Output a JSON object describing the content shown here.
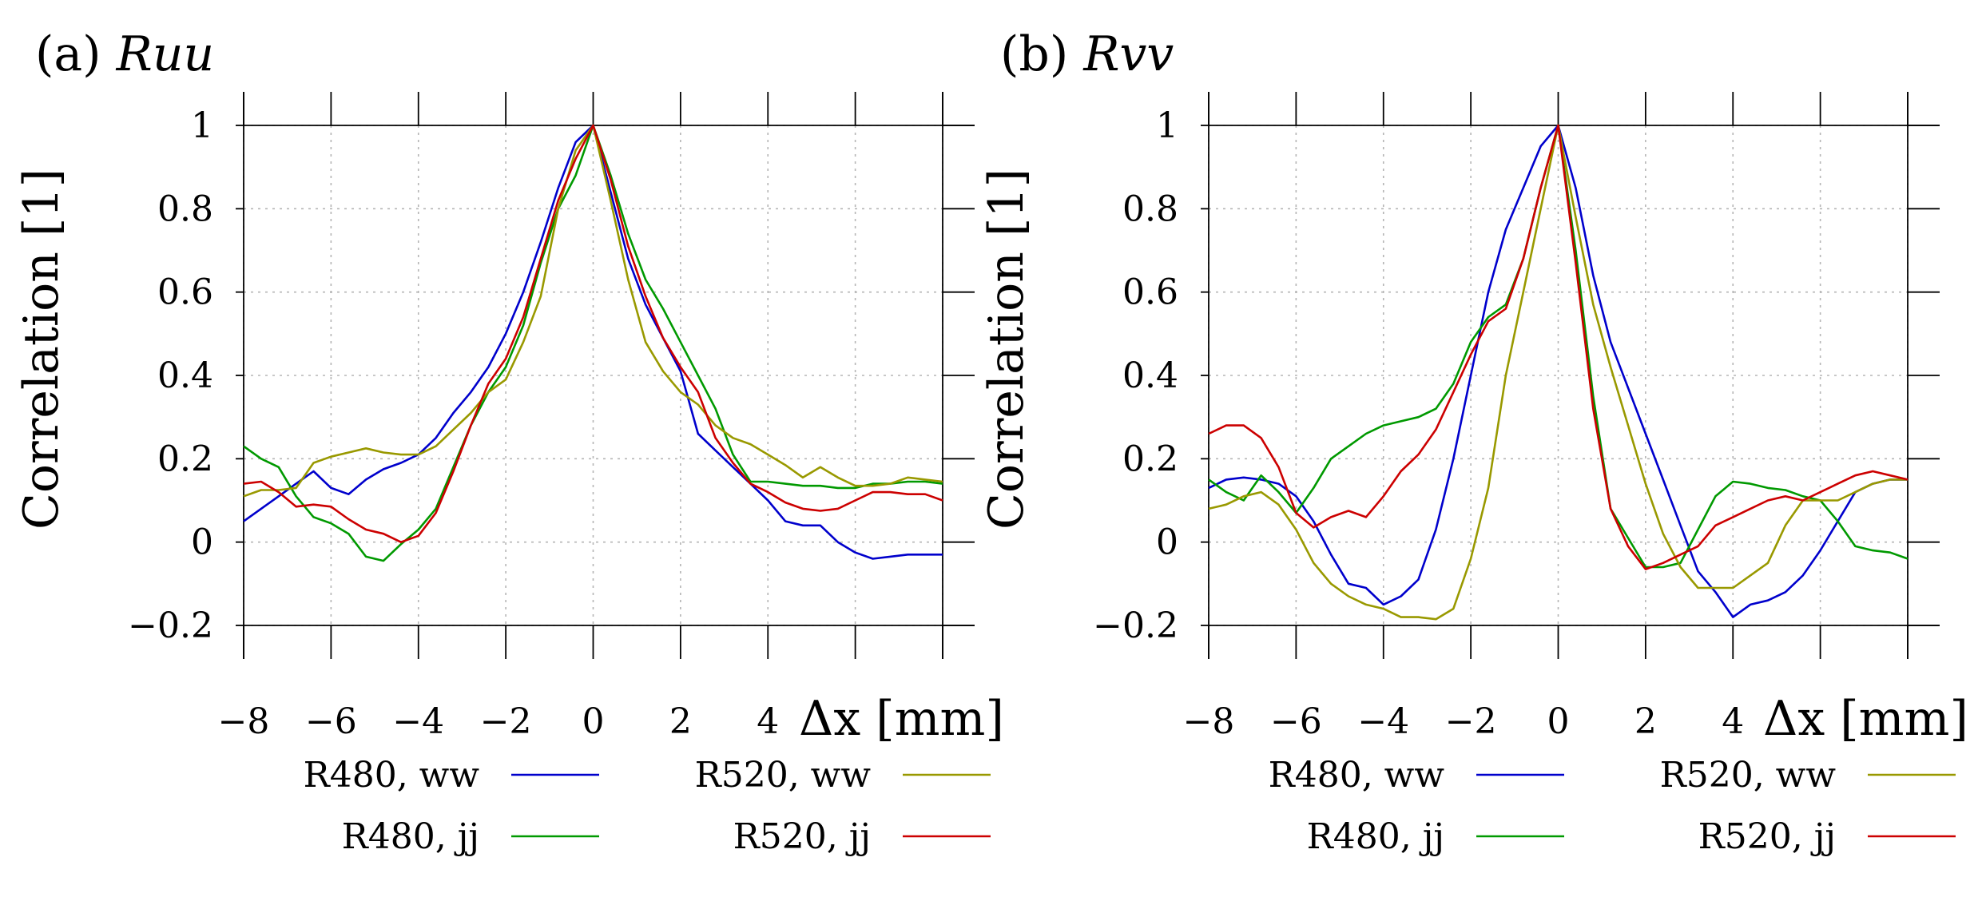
{
  "chart_data": [
    {
      "type": "line",
      "panel": "(a)",
      "title": "Ruu",
      "xlabel": "Δx [mm]",
      "ylabel": "Correlation [1]",
      "xlim": [
        -8,
        8
      ],
      "ylim": [
        -0.2,
        1
      ],
      "xticks": [
        -8,
        -6,
        -4,
        -2,
        0,
        2,
        4
      ],
      "xtick_labels": [
        "−8",
        "−6",
        "−4",
        "−2",
        "0",
        "2",
        "4"
      ],
      "yticks": [
        -0.2,
        0,
        0.2,
        0.4,
        0.6,
        0.8,
        1
      ],
      "ytick_labels": [
        "−0.2",
        "0",
        "0.2",
        "0.4",
        "0.6",
        "0.8",
        "1"
      ],
      "grid": true,
      "x": [
        -8,
        -7.6,
        -7.2,
        -6.8,
        -6.4,
        -6,
        -5.6,
        -5.2,
        -4.8,
        -4.4,
        -4,
        -3.6,
        -3.2,
        -2.8,
        -2.4,
        -2,
        -1.6,
        -1.2,
        -0.8,
        -0.4,
        0,
        0.4,
        0.8,
        1.2,
        1.6,
        2,
        2.4,
        2.8,
        3.2,
        3.6,
        4,
        4.4,
        4.8,
        5.2,
        5.6,
        6,
        6.4,
        6.8,
        7.2,
        7.6,
        8
      ],
      "series": [
        {
          "name": "R480, ww",
          "color": "#0000cc",
          "values": [
            0.05,
            0.08,
            0.11,
            0.14,
            0.17,
            0.13,
            0.115,
            0.15,
            0.175,
            0.19,
            0.21,
            0.25,
            0.31,
            0.36,
            0.42,
            0.5,
            0.6,
            0.72,
            0.85,
            0.96,
            1.0,
            0.84,
            0.68,
            0.57,
            0.49,
            0.41,
            0.26,
            0.22,
            0.18,
            0.14,
            0.1,
            0.05,
            0.04,
            0.04,
            0.0,
            -0.025,
            -0.04,
            -0.035,
            -0.03,
            -0.03,
            -0.03
          ]
        },
        {
          "name": "R480, jj",
          "color": "#009900",
          "values": [
            0.23,
            0.2,
            0.18,
            0.11,
            0.06,
            0.045,
            0.02,
            -0.035,
            -0.045,
            -0.005,
            0.03,
            0.08,
            0.18,
            0.28,
            0.36,
            0.42,
            0.52,
            0.67,
            0.8,
            0.88,
            1.0,
            0.88,
            0.74,
            0.63,
            0.56,
            0.48,
            0.4,
            0.32,
            0.21,
            0.145,
            0.145,
            0.14,
            0.135,
            0.135,
            0.13,
            0.13,
            0.14,
            0.14,
            0.145,
            0.145,
            0.14
          ]
        },
        {
          "name": "R520, ww",
          "color": "#999900",
          "values": [
            0.11,
            0.125,
            0.125,
            0.13,
            0.19,
            0.205,
            0.215,
            0.225,
            0.215,
            0.21,
            0.21,
            0.23,
            0.27,
            0.31,
            0.36,
            0.39,
            0.48,
            0.59,
            0.8,
            0.94,
            1.0,
            0.82,
            0.63,
            0.48,
            0.41,
            0.36,
            0.33,
            0.28,
            0.25,
            0.235,
            0.21,
            0.185,
            0.155,
            0.18,
            0.155,
            0.135,
            0.135,
            0.14,
            0.155,
            0.15,
            0.145
          ]
        },
        {
          "name": "R520, jj",
          "color": "#cc0000",
          "values": [
            0.14,
            0.145,
            0.12,
            0.085,
            0.09,
            0.085,
            0.055,
            0.03,
            0.02,
            0.0,
            0.015,
            0.07,
            0.17,
            0.28,
            0.38,
            0.44,
            0.54,
            0.68,
            0.82,
            0.92,
            1.0,
            0.87,
            0.71,
            0.59,
            0.49,
            0.42,
            0.36,
            0.25,
            0.19,
            0.14,
            0.12,
            0.095,
            0.08,
            0.075,
            0.08,
            0.1,
            0.12,
            0.12,
            0.115,
            0.115,
            0.1
          ]
        }
      ]
    },
    {
      "type": "line",
      "panel": "(b)",
      "title": "Rvv",
      "xlabel": "Δx [mm]",
      "ylabel": "Correlation [1]",
      "xlim": [
        -8,
        8
      ],
      "ylim": [
        -0.2,
        1
      ],
      "xticks": [
        -8,
        -6,
        -4,
        -2,
        0,
        2,
        4
      ],
      "xtick_labels": [
        "−8",
        "−6",
        "−4",
        "−2",
        "0",
        "2",
        "4"
      ],
      "yticks": [
        -0.2,
        0,
        0.2,
        0.4,
        0.6,
        0.8,
        1
      ],
      "ytick_labels": [
        "−0.2",
        "0",
        "0.2",
        "0.4",
        "0.6",
        "0.8",
        "1"
      ],
      "grid": true,
      "x": [
        -8,
        -7.6,
        -7.2,
        -6.8,
        -6.4,
        -6,
        -5.6,
        -5.2,
        -4.8,
        -4.4,
        -4,
        -3.6,
        -3.2,
        -2.8,
        -2.4,
        -2,
        -1.6,
        -1.2,
        -0.8,
        -0.4,
        0,
        0.4,
        0.8,
        1.2,
        1.6,
        2,
        2.4,
        2.8,
        3.2,
        3.6,
        4,
        4.4,
        4.8,
        5.2,
        5.6,
        6,
        6.4,
        6.8,
        7.2,
        7.6,
        8
      ],
      "series": [
        {
          "name": "R480, ww",
          "color": "#0000cc",
          "values": [
            0.13,
            0.15,
            0.155,
            0.15,
            0.14,
            0.11,
            0.05,
            -0.03,
            -0.1,
            -0.11,
            -0.15,
            -0.13,
            -0.09,
            0.03,
            0.2,
            0.4,
            0.6,
            0.75,
            0.85,
            0.95,
            1.0,
            0.85,
            0.64,
            0.48,
            0.37,
            0.26,
            0.15,
            0.04,
            -0.07,
            -0.12,
            -0.18,
            -0.15,
            -0.14,
            -0.12,
            -0.08,
            -0.02,
            0.05,
            0.12,
            0.14,
            0.15,
            0.15
          ]
        },
        {
          "name": "R480, jj",
          "color": "#009900",
          "values": [
            0.15,
            0.12,
            0.1,
            0.16,
            0.12,
            0.07,
            0.13,
            0.2,
            0.23,
            0.26,
            0.28,
            0.29,
            0.3,
            0.32,
            0.38,
            0.48,
            0.54,
            0.57,
            0.68,
            0.85,
            1.0,
            0.7,
            0.35,
            0.08,
            0.01,
            -0.06,
            -0.06,
            -0.05,
            0.03,
            0.11,
            0.145,
            0.14,
            0.13,
            0.125,
            0.11,
            0.1,
            0.05,
            -0.01,
            -0.02,
            -0.025,
            -0.04
          ]
        },
        {
          "name": "R520, ww",
          "color": "#999900",
          "values": [
            0.08,
            0.09,
            0.11,
            0.12,
            0.09,
            0.03,
            -0.05,
            -0.1,
            -0.13,
            -0.15,
            -0.16,
            -0.18,
            -0.18,
            -0.185,
            -0.16,
            -0.04,
            0.13,
            0.4,
            0.6,
            0.8,
            1.0,
            0.78,
            0.57,
            0.42,
            0.28,
            0.14,
            0.02,
            -0.06,
            -0.11,
            -0.11,
            -0.11,
            -0.08,
            -0.05,
            0.04,
            0.1,
            0.1,
            0.1,
            0.12,
            0.14,
            0.15,
            0.15
          ]
        },
        {
          "name": "R520, jj",
          "color": "#cc0000",
          "values": [
            0.26,
            0.28,
            0.28,
            0.25,
            0.18,
            0.07,
            0.035,
            0.06,
            0.075,
            0.06,
            0.11,
            0.17,
            0.21,
            0.27,
            0.36,
            0.45,
            0.53,
            0.56,
            0.68,
            0.85,
            1.0,
            0.67,
            0.32,
            0.08,
            -0.01,
            -0.065,
            -0.05,
            -0.03,
            -0.01,
            0.04,
            0.06,
            0.08,
            0.1,
            0.11,
            0.1,
            0.12,
            0.14,
            0.16,
            0.17,
            0.16,
            0.15
          ]
        }
      ]
    }
  ]
}
